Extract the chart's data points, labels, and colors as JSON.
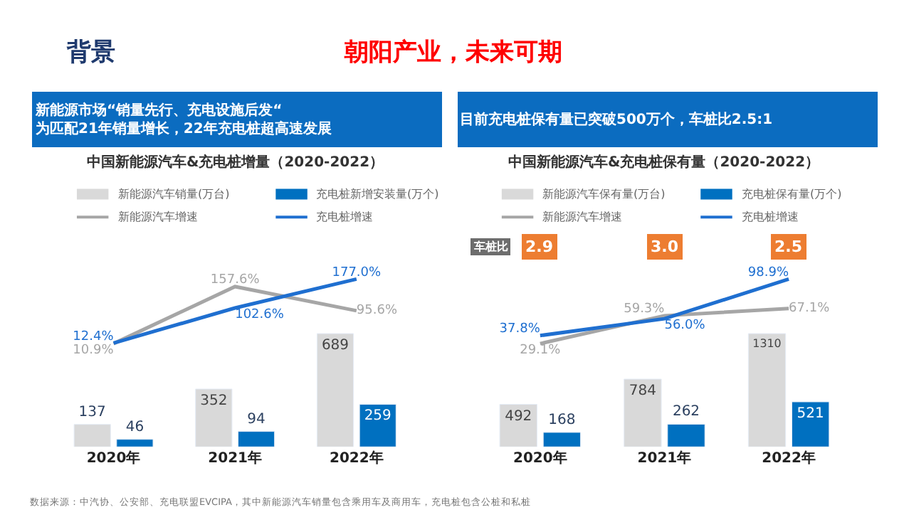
{
  "chart_data": [
    {
      "type": "other",
      "title": "背景",
      "annotations": [
        "朝阳产业，未来可期"
      ]
    },
    {
      "type": "bar",
      "title": "中国新能源汽车&充电桩增量（2020-2022）",
      "subtitle": "新能源市场“销量先行、充电设施后发“\n为匹配21年销量增长，22年充电桩超高速发展",
      "categories": [
        "2020年",
        "2021年",
        "2022年"
      ],
      "series": [
        {
          "name": "新能源汽车销量(万台)",
          "color": "#d9d9d9",
          "values": [
            137,
            352,
            689
          ]
        },
        {
          "name": "充电桩新增安装量(万个)",
          "color": "#0070c0",
          "values": [
            46,
            94,
            259
          ]
        },
        {
          "name": "新能源汽车增速",
          "type": "line",
          "axis": "y2",
          "color": "#a6a6a6",
          "values": [
            10.9,
            157.6,
            95.6
          ],
          "value_labels": [
            "10.9%",
            "157.6%",
            "95.6%"
          ]
        },
        {
          "name": "充电桩增速",
          "type": "line",
          "axis": "y2",
          "color": "#1f6fd0",
          "values": [
            12.4,
            102.6,
            177.0
          ],
          "value_labels": [
            "12.4%",
            "102.6%",
            "177.0%"
          ]
        }
      ],
      "data_labels": true,
      "legend": "top",
      "annotations": [
        "数据来源：中汽协、公安部、充电联盟EVCIPA，其中新能源汽车销量包含乘用车及商用车，充电桩包含公桩和私桩"
      ]
    },
    {
      "type": "bar",
      "title": "中国新能源汽车&充电桩保有量（2020-2022）",
      "subtitle": "目前充电桩保有量已突破500万个，车桩比2.5:1",
      "categories": [
        "2020年",
        "2021年",
        "2022年"
      ],
      "series": [
        {
          "name": "新能源汽车保有量(万台)",
          "color": "#d9d9d9",
          "values": [
            492,
            784,
            1310
          ]
        },
        {
          "name": "充电桩保有量(万个)",
          "color": "#0070c0",
          "values": [
            168,
            262,
            521
          ]
        },
        {
          "name": "新能源汽车增速",
          "type": "line",
          "axis": "y2",
          "color": "#a6a6a6",
          "values": [
            29.1,
            59.3,
            67.1
          ],
          "value_labels": [
            "29.1%",
            "59.3%",
            "67.1%"
          ]
        },
        {
          "name": "充电桩增速",
          "type": "line",
          "axis": "y2",
          "color": "#1f6fd0",
          "values": [
            37.8,
            56.0,
            98.9
          ],
          "value_labels": [
            "37.8%",
            "56.0%",
            "98.9%"
          ]
        }
      ],
      "data_labels": true,
      "legend": "top",
      "annotations": [
        "车桩比",
        "2.9",
        "3.0",
        "2.5"
      ]
    }
  ]
}
